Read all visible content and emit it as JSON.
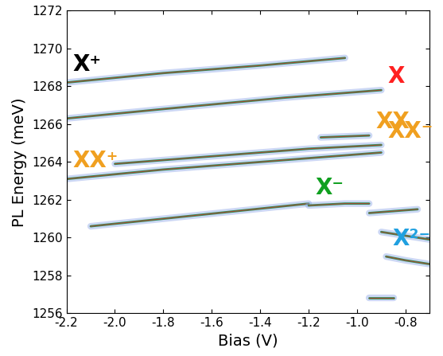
{
  "chart_data": {
    "type": "line",
    "xlabel": "Bias (V)",
    "ylabel": "PL Energy (meV)",
    "xlim": [
      -2.2,
      -0.7
    ],
    "ylim": [
      1256,
      1272
    ],
    "xticks": [
      -2.2,
      -2.0,
      -1.8,
      -1.6,
      -1.4,
      -1.2,
      -1.0,
      -0.8
    ],
    "yticks": [
      1256,
      1258,
      1260,
      1262,
      1264,
      1266,
      1268,
      1270,
      1272
    ],
    "series": [
      {
        "name": "X⁺",
        "color": "#000000",
        "x": [
          -2.2,
          -1.8,
          -1.4,
          -1.05
        ],
        "values": [
          1268.2,
          1268.7,
          1269.1,
          1269.5
        ]
      },
      {
        "name": "X",
        "color": "#ff2020",
        "x": [
          -0.9,
          -1.3,
          -1.8,
          -2.2
        ],
        "values": [
          1267.8,
          1267.4,
          1266.8,
          1266.3
        ]
      },
      {
        "name": "XX",
        "color": "#f0a020",
        "x": [
          -0.95,
          -1.15
        ],
        "values": [
          1265.4,
          1265.3
        ]
      },
      {
        "name": "XX⁻",
        "color": "#f0a020",
        "x": [
          -0.9,
          -1.2,
          -1.6,
          -2.0
        ],
        "values": [
          1264.9,
          1264.7,
          1264.3,
          1263.9
        ]
      },
      {
        "name": "XX⁺",
        "color": "#f0a020",
        "x": [
          -2.2,
          -1.8,
          -1.4,
          -0.9
        ],
        "values": [
          1263.1,
          1263.6,
          1264.0,
          1264.5
        ]
      },
      {
        "color": "#4060c0",
        "x": [
          -2.1,
          -1.8,
          -1.5,
          -1.2
        ],
        "values": [
          1260.6,
          1261.0,
          1261.4,
          1261.8
        ]
      },
      {
        "name": "X⁻",
        "color": "#10a020",
        "x": [
          -1.2,
          -1.05,
          -0.95
        ],
        "values": [
          1261.7,
          1261.8,
          1261.8
        ]
      },
      {
        "color": "#4060c0",
        "x": [
          -0.95,
          -0.85,
          -0.75
        ],
        "values": [
          1261.3,
          1261.4,
          1261.5
        ]
      },
      {
        "color": "#4060c0",
        "x": [
          -0.9,
          -0.8,
          -0.7
        ],
        "values": [
          1260.3,
          1260.1,
          1259.9
        ]
      },
      {
        "name": "X²⁻",
        "color": "#20a0e0",
        "x": [
          -0.88,
          -0.8,
          -0.7
        ],
        "values": [
          1259.0,
          1258.8,
          1258.6
        ]
      },
      {
        "color": "#4060c0",
        "x": [
          -0.95,
          -0.85
        ],
        "values": [
          1256.8,
          1256.8
        ]
      }
    ]
  }
}
